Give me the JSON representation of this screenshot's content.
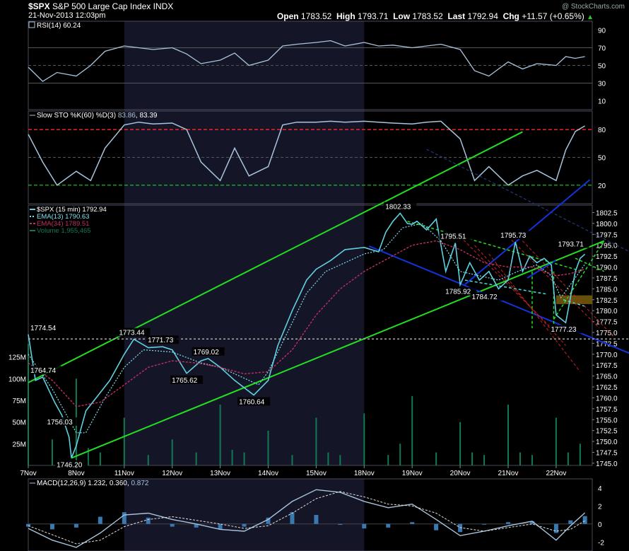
{
  "header": {
    "symbol": "$SPX",
    "name": "S&P 500 Large Cap Index",
    "exchange": "INDX",
    "datetime": "21-Nov-2013 12:03pm",
    "watermark": "@ StockCharts.com",
    "open_label": "Open",
    "open": "1783.52",
    "high_label": "High",
    "high": "1793.71",
    "low_label": "Low",
    "low": "1783.52",
    "last_label": "Last",
    "last": "1792.94",
    "chg_label": "Chg",
    "chg": "+11.57 (+0.65%)",
    "up_glyph": "▲"
  },
  "colors": {
    "background": "#000000",
    "shade": "#151528",
    "panel_border": "#4a4a5a",
    "price": "#5fd0e0",
    "ema13": "#7fe0f0",
    "ema34": "#c03060",
    "volume": "#107a50",
    "channel": "#22dd22",
    "blue_line": "#1133dd",
    "red_dashed": "#cc2222",
    "green_dashed": "#22dd22",
    "cyan_dashed": "#44dddd",
    "overbought": "#ee2222",
    "oversold": "#22cc22",
    "indicator": "#a8c4dc",
    "macd_hist": "#3a78b0",
    "zone": "#8a6a10"
  },
  "chart_data": [
    {
      "type": "line",
      "panel": "rsi",
      "label": "RSI(14) 60.24",
      "indicator": "RSI(14)",
      "last": 60.24,
      "ylim": [
        0,
        100
      ],
      "yticks": [
        10,
        30,
        50,
        70,
        90
      ],
      "reference_lines": [
        30,
        50,
        70
      ],
      "x": [
        0,
        0.3,
        0.6,
        1,
        1.3,
        1.6,
        2,
        2.3,
        2.6,
        3,
        3.3,
        3.6,
        4,
        4.3,
        4.6,
        5,
        5.3,
        5.6,
        6,
        6.3,
        6.6,
        7,
        7.3,
        7.6,
        8,
        8.3,
        8.6,
        9,
        9.3,
        9.6,
        10,
        10.3,
        10.6,
        11,
        11.2,
        11.4,
        11.6
      ],
      "values": [
        48,
        32,
        42,
        38,
        50,
        66,
        72,
        70,
        68,
        70,
        63,
        52,
        56,
        64,
        50,
        56,
        72,
        74,
        76,
        78,
        72,
        76,
        72,
        73,
        70,
        72,
        74,
        68,
        44,
        38,
        54,
        46,
        52,
        50,
        60,
        58,
        60
      ]
    },
    {
      "type": "line",
      "panel": "stochastic",
      "label": "Slow STO %K(60) %D(3)",
      "k_value": "83.86",
      "d_value": "83.39",
      "ylim": [
        0,
        100
      ],
      "yticks": [
        20,
        50,
        80
      ],
      "overbought": 80,
      "oversold": 20,
      "x": [
        0,
        0.3,
        0.6,
        1,
        1.3,
        1.6,
        2,
        2.3,
        2.6,
        3,
        3.3,
        3.6,
        4,
        4.3,
        4.6,
        5,
        5.3,
        5.6,
        6,
        6.3,
        6.6,
        7,
        7.3,
        7.6,
        8,
        8.3,
        8.6,
        9,
        9.3,
        9.6,
        10,
        10.3,
        10.6,
        11,
        11.2,
        11.4,
        11.6
      ],
      "values": [
        75,
        45,
        20,
        35,
        25,
        60,
        85,
        88,
        86,
        87,
        80,
        45,
        25,
        60,
        30,
        40,
        85,
        88,
        88,
        89,
        88,
        89,
        88,
        87,
        86,
        88,
        89,
        70,
        25,
        40,
        20,
        30,
        36,
        25,
        58,
        78,
        84
      ]
    },
    {
      "type": "line",
      "panel": "price",
      "label": "$SPX (15 min) 1792.94",
      "series": [
        {
          "name": "$SPX (15 min) 1792.94",
          "role": "price",
          "x": [
            0,
            0.15,
            0.3,
            0.55,
            0.7,
            0.85,
            0.9,
            1,
            1.2,
            1.45,
            1.7,
            2,
            2.2,
            2.5,
            2.8,
            3,
            3.3,
            3.6,
            3.75,
            4,
            4.3,
            4.7,
            5,
            5.2,
            5.5,
            5.8,
            6,
            6.3,
            6.6,
            7,
            7.3,
            7.45,
            7.6,
            7.75,
            7.9,
            8,
            8.1,
            8.3,
            8.5,
            8.7,
            8.9,
            9,
            9.2,
            9.4,
            9.6,
            9.8,
            10,
            10.15,
            10.3,
            10.45,
            10.6,
            10.75,
            10.9,
            11,
            11.2,
            11.4,
            11.5,
            11.6
          ],
          "values": [
            1774.54,
            1764.0,
            1764.74,
            1759.0,
            1756.03,
            1751.0,
            1746.2,
            1749.0,
            1757.0,
            1760.5,
            1764.0,
            1770.0,
            1773.44,
            1771.5,
            1771.73,
            1771.0,
            1765.62,
            1768.5,
            1769.02,
            1767.0,
            1764.0,
            1760.64,
            1764.0,
            1772.0,
            1780.0,
            1787.0,
            1789.5,
            1791.5,
            1794.0,
            1794.5,
            1793.5,
            1798.0,
            1800.5,
            1802.33,
            1800.0,
            1799.8,
            1800.5,
            1798.5,
            1801.0,
            1789.0,
            1795.51,
            1785.92,
            1791.0,
            1787.0,
            1789.0,
            1785.0,
            1787.0,
            1795.73,
            1789.0,
            1792.5,
            1791.0,
            1792.0,
            1790.5,
            1779.0,
            1777.23,
            1789.0,
            1792.0,
            1792.94
          ]
        },
        {
          "name": "EMA(13) 1790.63",
          "role": "ema13",
          "x": [
            0,
            0.5,
            1,
            1.2,
            1.6,
            2,
            2.4,
            3,
            3.6,
            4,
            4.4,
            4.8,
            5,
            5.4,
            5.8,
            6.2,
            6.6,
            7,
            7.4,
            7.8,
            8,
            8.2,
            8.6,
            9,
            9.4,
            9.8,
            10.2,
            10.6,
            10.9,
            11.1,
            11.3,
            11.6
          ],
          "values": [
            1770,
            1762,
            1752,
            1752,
            1760,
            1767,
            1771,
            1770.5,
            1768,
            1767,
            1765,
            1763,
            1766,
            1775,
            1784,
            1789,
            1791,
            1793,
            1794,
            1799,
            1799.5,
            1800,
            1796,
            1789,
            1788,
            1787,
            1789,
            1790.5,
            1788,
            1783,
            1786,
            1790.63
          ]
        },
        {
          "name": "EMA(34) 1789.51",
          "role": "ema34",
          "x": [
            0,
            0.5,
            1,
            1.5,
            2,
            2.5,
            3,
            3.5,
            4,
            4.5,
            5,
            5.5,
            6,
            6.5,
            7,
            7.5,
            8,
            8.5,
            9,
            9.5,
            10,
            10.5,
            11,
            11.3,
            11.6
          ],
          "values": [
            1768,
            1764,
            1758,
            1759,
            1763,
            1767,
            1768.5,
            1768,
            1767,
            1765.5,
            1766,
            1771,
            1779,
            1785,
            1789,
            1792,
            1795,
            1796,
            1794,
            1791,
            1790,
            1790,
            1788,
            1788.5,
            1789.51
          ]
        }
      ],
      "volume": {
        "name": "Volume 1,955,465",
        "x": [
          0,
          0.5,
          1,
          1.25,
          1.5,
          2,
          2.5,
          3,
          3.5,
          4,
          4.25,
          4.5,
          5,
          5.5,
          6,
          6.25,
          6.5,
          7,
          7.5,
          7.75,
          8,
          8.5,
          9,
          9.25,
          9.5,
          10,
          10.25,
          10.5,
          11,
          11.25,
          11.5
        ],
        "values": [
          140,
          30,
          100,
          20,
          15,
          55,
          12,
          30,
          15,
          70,
          18,
          15,
          40,
          12,
          55,
          15,
          12,
          60,
          12,
          25,
          80,
          15,
          50,
          15,
          12,
          70,
          15,
          12,
          55,
          15,
          25
        ]
      },
      "annotations": [
        {
          "text": "1774.54",
          "x": 0,
          "y": 1774.54
        },
        {
          "text": "1764.74",
          "x": 0.3,
          "y": 1764.74
        },
        {
          "text": "1756.03",
          "x": 0.7,
          "y": 1756.03
        },
        {
          "text": "1746.20",
          "x": 0.9,
          "y": 1746.2
        },
        {
          "text": "1773.44",
          "x": 2.2,
          "y": 1773.44
        },
        {
          "text": "1771.73",
          "x": 2.8,
          "y": 1771.73
        },
        {
          "text": "1765.62",
          "x": 3.3,
          "y": 1765.62
        },
        {
          "text": "1769.02",
          "x": 3.75,
          "y": 1769.02
        },
        {
          "text": "1760.64",
          "x": 4.7,
          "y": 1760.64
        },
        {
          "text": "1802.33",
          "x": 7.75,
          "y": 1802.33
        },
        {
          "text": "1795.51",
          "x": 8.9,
          "y": 1795.51
        },
        {
          "text": "1785.92",
          "x": 9,
          "y": 1785.92
        },
        {
          "text": "1784.72",
          "x": 9.55,
          "y": 1784.72
        },
        {
          "text": "1795.73",
          "x": 10.15,
          "y": 1795.73
        },
        {
          "text": "1793.71",
          "x": 11.35,
          "y": 1793.71
        },
        {
          "text": "1777.23",
          "x": 11.2,
          "y": 1777.23
        }
      ],
      "trendlines": [
        {
          "style": "green",
          "x1": 0,
          "y1": 1763.5,
          "x2": 10.3,
          "y2": 1821
        },
        {
          "style": "green",
          "x1": 0.9,
          "y1": 1746.2,
          "x2": 12.0,
          "y2": 1796
        },
        {
          "style": "blue",
          "x1": 7.1,
          "y1": 1794.8,
          "x2": 12.8,
          "y2": 1769
        },
        {
          "style": "blue",
          "x1": 9.1,
          "y1": 1786,
          "x2": 11.7,
          "y2": 1810
        },
        {
          "style": "blue",
          "x1": 10.4,
          "y1": 1787.5,
          "x2": 10.99,
          "y2": 1791.5
        },
        {
          "style": "blue_dashed",
          "x1": 8.3,
          "y1": 1817,
          "x2": 12.8,
          "y2": 1792
        },
        {
          "style": "green_dashed",
          "x1": 7.9,
          "y1": 1800.5,
          "x2": 11.55,
          "y2": 1789
        },
        {
          "style": "green_dashed",
          "x1": 10.5,
          "y1": 1789,
          "x2": 10.5,
          "y2": 1776
        },
        {
          "style": "green_dashed",
          "x1": 10.95,
          "y1": 1789,
          "x2": 10.95,
          "y2": 1776
        },
        {
          "style": "green_dashed",
          "x1": 10.95,
          "y1": 1778,
          "x2": 12.0,
          "y2": 1796
        },
        {
          "style": "green_dashed",
          "x1": 11.4,
          "y1": 1792,
          "x2": 12.0,
          "y2": 1789
        },
        {
          "style": "cyan_dashed",
          "x1": 9.1,
          "y1": 1787,
          "x2": 10.8,
          "y2": 1783.8
        },
        {
          "style": "cyan_dashed",
          "x1": 11.15,
          "y1": 1782.5,
          "x2": 11.6,
          "y2": 1781
        },
        {
          "style": "red_dashed",
          "x1": 9.0,
          "y1": 1797,
          "x2": 10.9,
          "y2": 1776
        },
        {
          "style": "red_dashed",
          "x1": 9.3,
          "y1": 1795,
          "x2": 11.2,
          "y2": 1772
        },
        {
          "style": "red_dashed",
          "x1": 9.6,
          "y1": 1793,
          "x2": 11.5,
          "y2": 1766
        },
        {
          "style": "red_dashed",
          "x1": 10.0,
          "y1": 1797,
          "x2": 11.9,
          "y2": 1776
        },
        {
          "style": "red_dashed",
          "x1": 10.3,
          "y1": 1796,
          "x2": 12.2,
          "y2": 1774
        },
        {
          "style": "support",
          "x1": 0,
          "y1": 1773.5,
          "x2": 12.8,
          "y2": 1773.5
        }
      ],
      "zone": {
        "y_low": 1781.5,
        "y_high": 1783.5,
        "x_start": 11.0
      },
      "ylim": [
        1744.5,
        1804.2
      ],
      "yticks": [
        1745,
        1747.5,
        1750,
        1752.5,
        1755,
        1757.5,
        1760,
        1762.5,
        1765,
        1767.5,
        1770,
        1772.5,
        1775,
        1777.5,
        1780,
        1782.5,
        1785,
        1787.5,
        1790,
        1792.5,
        1795,
        1797.5,
        1800,
        1802.5
      ],
      "ytick_labels": [
        "1745.0",
        "1747.5",
        "1750.0",
        "1752.5",
        "1755.0",
        "1757.5",
        "1760.0",
        "1762.5",
        "1765.0",
        "1767.5",
        "1770.0",
        "1772.5",
        "1775.0",
        "1777.5",
        "1780.0",
        "1782.5",
        "1785.0",
        "1787.5",
        "1790.0",
        "1792.5",
        "1795.0",
        "1797.5",
        "1800.0",
        "1802.5"
      ],
      "volume_ticks": [
        "25M",
        "50M",
        "75M",
        "100M",
        "125M"
      ],
      "volume_tick_values": [
        25,
        50,
        75,
        100,
        125
      ],
      "volume_max": 300
    },
    {
      "type": "line",
      "panel": "macd",
      "label": "MACD(12,26,9)",
      "macd": "1.232",
      "signal": "0.360",
      "histogram": "0.872",
      "ylim": [
        -3,
        5
      ],
      "yticks": [
        -2,
        0,
        2,
        4
      ],
      "x": [
        0,
        0.5,
        1,
        1.5,
        2,
        2.5,
        3,
        3.5,
        4,
        4.5,
        5,
        5.5,
        6,
        6.5,
        7,
        7.5,
        8,
        8.5,
        9,
        9.5,
        10,
        10.5,
        11,
        11.3,
        11.6
      ],
      "macd_values": [
        -0.5,
        -1.8,
        -2.6,
        -1,
        1,
        1.2,
        0.5,
        0,
        -0.6,
        -0.8,
        0.5,
        2.5,
        3.8,
        3.5,
        2.5,
        1.8,
        2.2,
        0.5,
        -1.3,
        -0.8,
        -0.2,
        0.3,
        -1.8,
        -0.2,
        1.232
      ],
      "signal_values": [
        -0.2,
        -1.2,
        -2.2,
        -1.8,
        -0.3,
        0.5,
        0.8,
        0.4,
        0,
        -0.5,
        -0.2,
        1.2,
        2.8,
        3.6,
        3,
        2.2,
        2,
        1.2,
        -0.4,
        -0.8,
        -0.4,
        0,
        -0.8,
        -0.6,
        0.36
      ]
    }
  ],
  "x_axis": {
    "labels": [
      "7Nov",
      "8Nov",
      "11Nov",
      "12Nov",
      "13Nov",
      "14Nov",
      "15Nov",
      "18Nov",
      "19Nov",
      "20Nov",
      "21Nov",
      "22Nov"
    ],
    "positions": [
      0,
      1,
      2,
      3,
      4,
      5,
      6,
      7,
      8,
      9,
      10,
      11
    ],
    "xlim": [
      0,
      12.5
    ],
    "shaded": [
      [
        2,
        7
      ]
    ]
  }
}
